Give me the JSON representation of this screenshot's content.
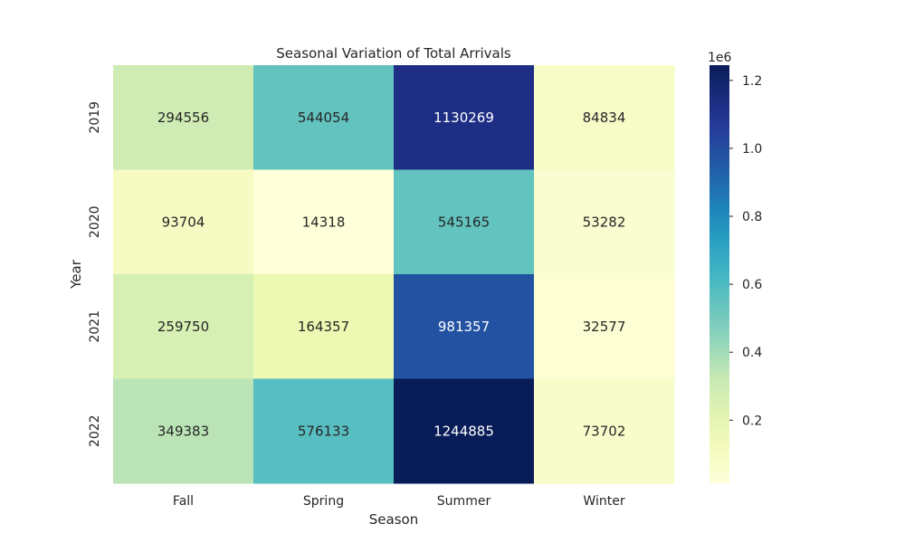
{
  "chart_data": {
    "type": "heatmap",
    "title": "Seasonal Variation of Total Arrivals",
    "xlabel": "Season",
    "ylabel": "Year",
    "columns": [
      "Fall",
      "Spring",
      "Summer",
      "Winter"
    ],
    "rows": [
      "2019",
      "2020",
      "2021",
      "2022"
    ],
    "values": [
      [
        294556,
        544054,
        1130269,
        84834
      ],
      [
        93704,
        14318,
        545165,
        53282
      ],
      [
        259750,
        164357,
        981357,
        32577
      ],
      [
        349383,
        576133,
        1244885,
        73702
      ]
    ],
    "colormap": "YlGnBu",
    "colorbar": {
      "multiplier_label": "1e6",
      "ticks": [
        0.2,
        0.4,
        0.6,
        0.8,
        1.0,
        1.2
      ],
      "tick_labels": [
        "0.2",
        "0.4",
        "0.6",
        "0.8",
        "1.0",
        "1.2"
      ],
      "vmin": 14318,
      "vmax": 1244885
    },
    "annotations": true,
    "grid": false
  }
}
